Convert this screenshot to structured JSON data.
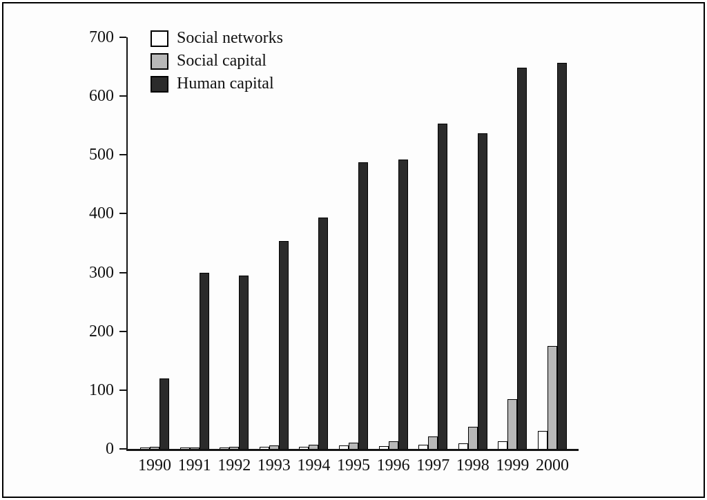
{
  "chart_data": {
    "type": "bar",
    "title": "",
    "xlabel": "",
    "ylabel": "",
    "categories": [
      "1990",
      "1991",
      "1992",
      "1993",
      "1994",
      "1995",
      "1996",
      "1997",
      "1998",
      "1999",
      "2000"
    ],
    "series": [
      {
        "name": "Social networks",
        "color": "#ffffff",
        "values": [
          2,
          1,
          1,
          3,
          4,
          6,
          5,
          7,
          9,
          13,
          30
        ]
      },
      {
        "name": "Social capital",
        "color": "#b8b8b8",
        "values": [
          4,
          2,
          3,
          6,
          7,
          11,
          13,
          21,
          38,
          85,
          175
        ]
      },
      {
        "name": "Human capital",
        "color": "#2b2b2b",
        "values": [
          120,
          300,
          295,
          354,
          393,
          488,
          492,
          553,
          537,
          648,
          657
        ]
      }
    ],
    "ylim": [
      0,
      700
    ],
    "yticks": [
      0,
      100,
      200,
      300,
      400,
      500,
      600,
      700
    ],
    "legend_position": "top-left",
    "grid": false,
    "axis_color": "#141414",
    "bar_border_color": "#000000"
  }
}
